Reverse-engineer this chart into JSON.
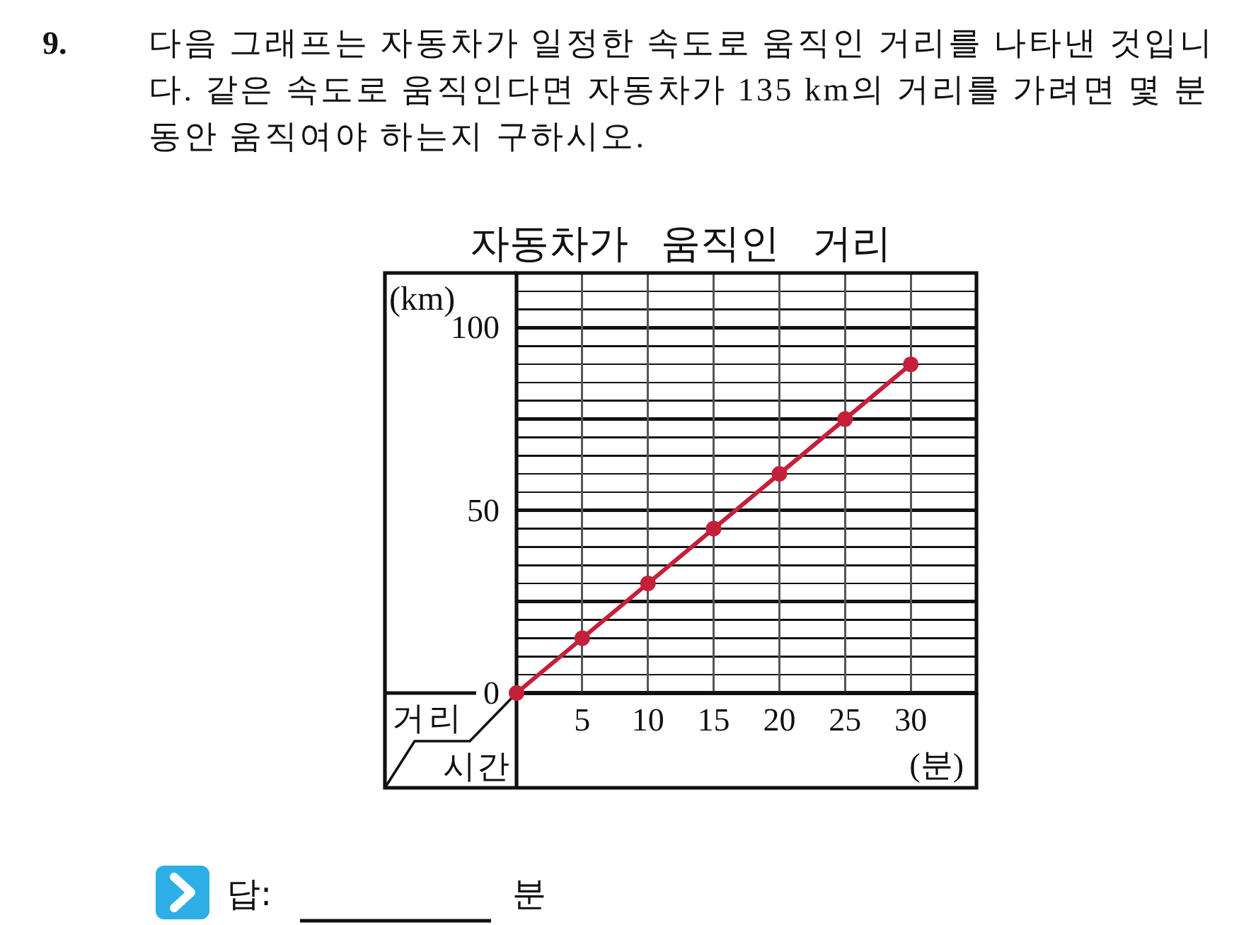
{
  "chart_data": {
    "type": "line",
    "title": "자동차가 움직인 거리",
    "xlabel": "(분)",
    "ylabel": "(km)",
    "x": [
      0,
      5,
      10,
      15,
      20,
      25,
      30
    ],
    "series": [
      {
        "color": "#c4203a",
        "values": [
          0,
          15,
          30,
          45,
          60,
          75,
          90
        ]
      }
    ],
    "xlim": [
      0,
      35
    ],
    "ylim": [
      0,
      115
    ],
    "xticks": [
      5,
      10,
      15,
      20,
      25,
      30
    ],
    "yticks": [
      0,
      {
        "value": 5,
        "label": null
      },
      {
        "value": 10,
        "label": null
      },
      {
        "value": 15,
        "label": null
      },
      {
        "value": 20,
        "label": null
      },
      {
        "value": 25,
        "label": null
      },
      {
        "value": 30,
        "label": null
      },
      {
        "value": 35,
        "label": null
      },
      {
        "value": 40,
        "label": null
      },
      {
        "value": 45,
        "label": null
      },
      50,
      {
        "value": 55,
        "label": null
      },
      {
        "value": 60,
        "label": null
      },
      {
        "value": 65,
        "label": null
      },
      {
        "value": 70,
        "label": null
      },
      {
        "value": 75,
        "label": null
      },
      {
        "value": 80,
        "label": null
      },
      {
        "value": 85,
        "label": null
      },
      {
        "value": 90,
        "label": null
      },
      {
        "value": 95,
        "label": null
      },
      100,
      {
        "value": 105,
        "label": null
      },
      {
        "value": 110,
        "label": null
      }
    ],
    "grid": true,
    "marker": "circle",
    "line_style": "solid",
    "annotations": [
      "9.",
      "다음 그래프는 자동차가 일정한 속도로 움직인 거리를 나타낸 것입니다. 같은 속도로 움직인다면 자동차가 135 km의 거리를 가려면 몇 분 동안 움직여야 하는지 구하시오.",
      "거리",
      "시간",
      "답:",
      "분"
    ]
  }
}
